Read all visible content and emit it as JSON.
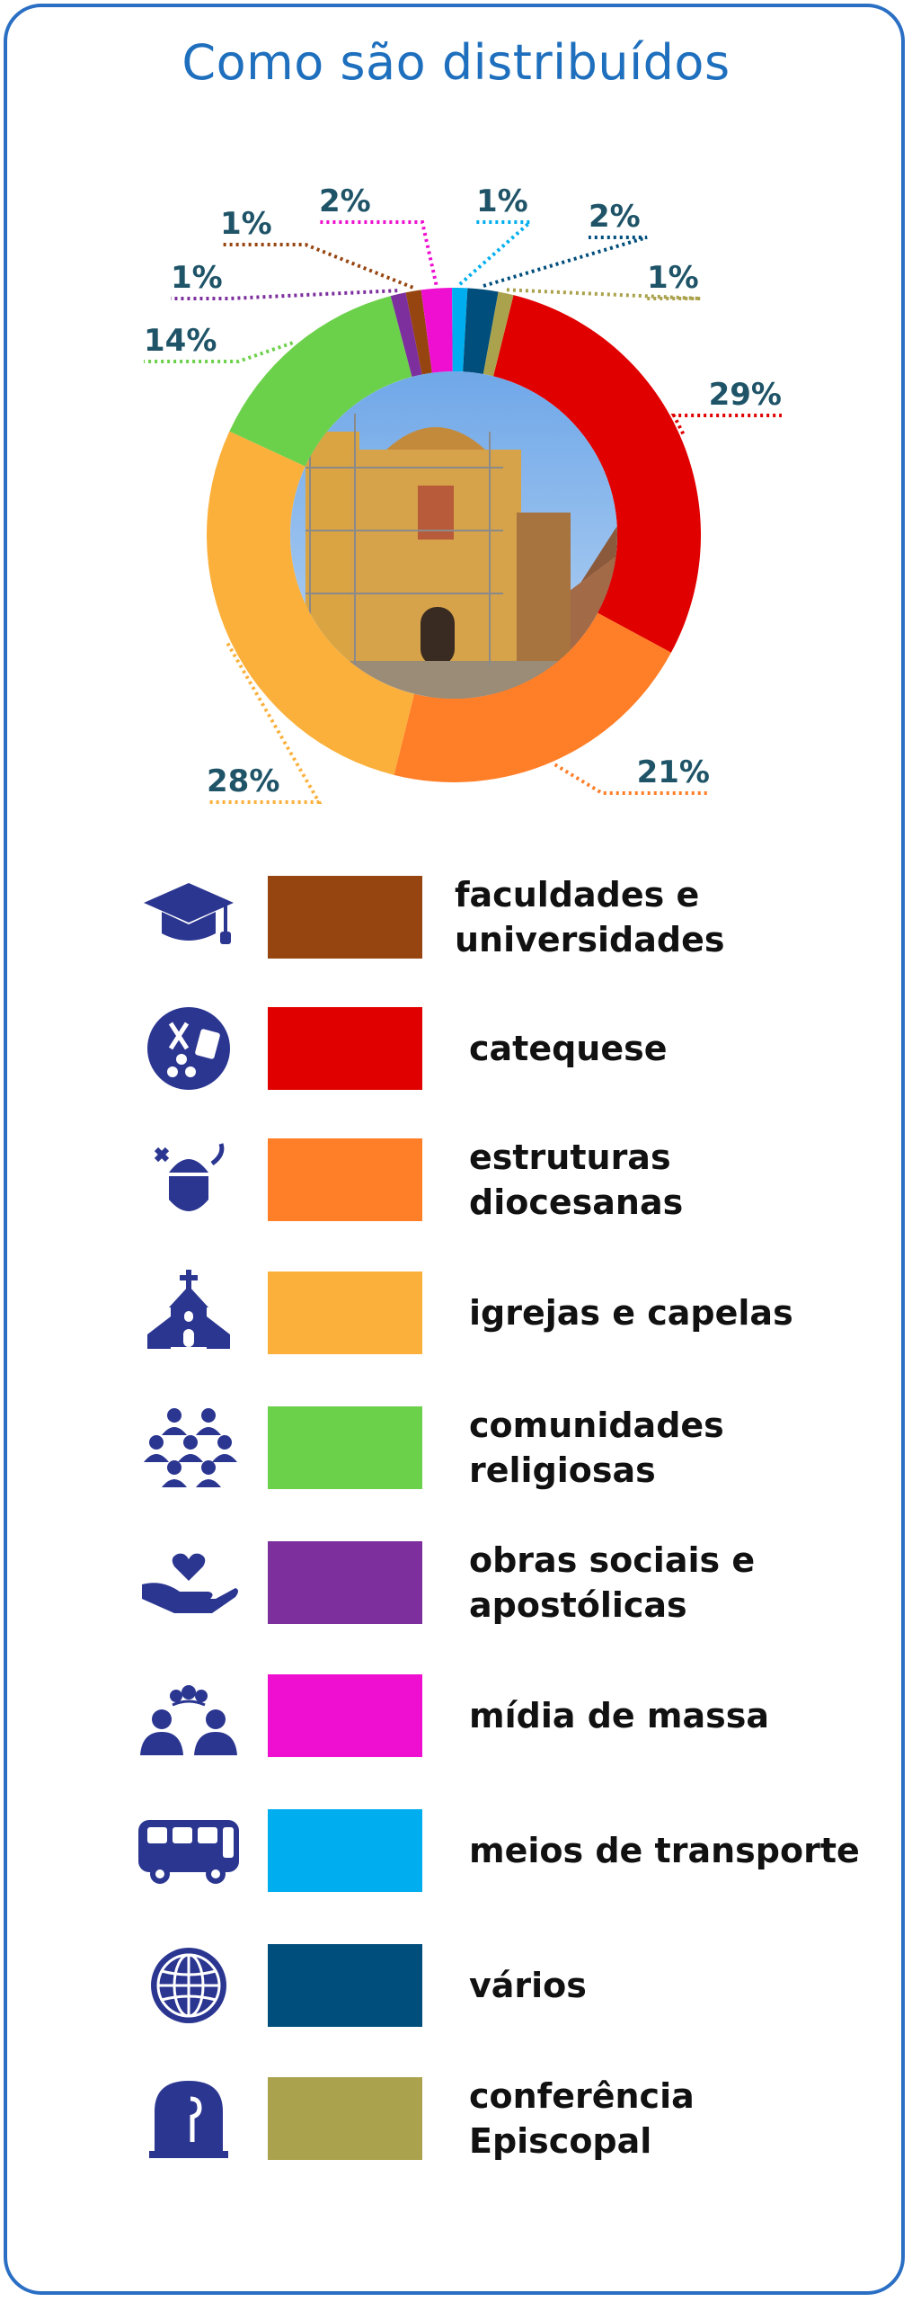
{
  "chart_data": {
    "type": "pie",
    "title": "Como são distribuídos",
    "categories": [
      "catequese",
      "estruturas diocesanas",
      "igrejas e capelas",
      "comunidades religiosas",
      "obras sociais e apostólicas",
      "faculdades e universidades",
      "mídia de massa",
      "meios de transporte",
      "vários",
      "conferência Episcopal"
    ],
    "values": [
      29,
      21,
      28,
      14,
      1,
      1,
      2,
      1,
      2,
      1
    ],
    "value_labels": [
      "29%",
      "21%",
      "28%",
      "14%",
      "1%",
      "1%",
      "2%",
      "1%",
      "2%",
      "1%"
    ],
    "colors": [
      "#e10000",
      "#ff7f28",
      "#fbb03b",
      "#6cd14a",
      "#7d2f9e",
      "#974510",
      "#ee0fd0",
      "#00aeef",
      "#004e7c",
      "#aaa24c"
    ],
    "donut": true,
    "legend_position": "bottom"
  },
  "legend": [
    {
      "label": "faculdades e universidades",
      "color": "#974510",
      "icon": "graduation-cap-icon"
    },
    {
      "label": "catequese",
      "color": "#e10000",
      "icon": "catechesis-icon"
    },
    {
      "label": "estruturas diocesanas",
      "color": "#ff7f28",
      "icon": "mitre-icon"
    },
    {
      "label": "igrejas e capelas",
      "color": "#fbb03b",
      "icon": "church-icon"
    },
    {
      "label": "comunidades religiosas",
      "color": "#6cd14a",
      "icon": "community-icon"
    },
    {
      "label": "obras sociais e apostólicas",
      "color": "#7d2f9e",
      "icon": "heart-hand-icon"
    },
    {
      "label": "mídia de massa",
      "color": "#ee0fd0",
      "icon": "speech-icon"
    },
    {
      "label": "meios de transporte",
      "color": "#00aeef",
      "icon": "bus-icon"
    },
    {
      "label": "vários",
      "color": "#004e7c",
      "icon": "globe-icon"
    },
    {
      "label": "conferência Episcopal",
      "color": "#aaa24c",
      "icon": "bishop-seal-icon"
    }
  ],
  "icon_color": "#2b3691",
  "accent": "#1e6fbd"
}
